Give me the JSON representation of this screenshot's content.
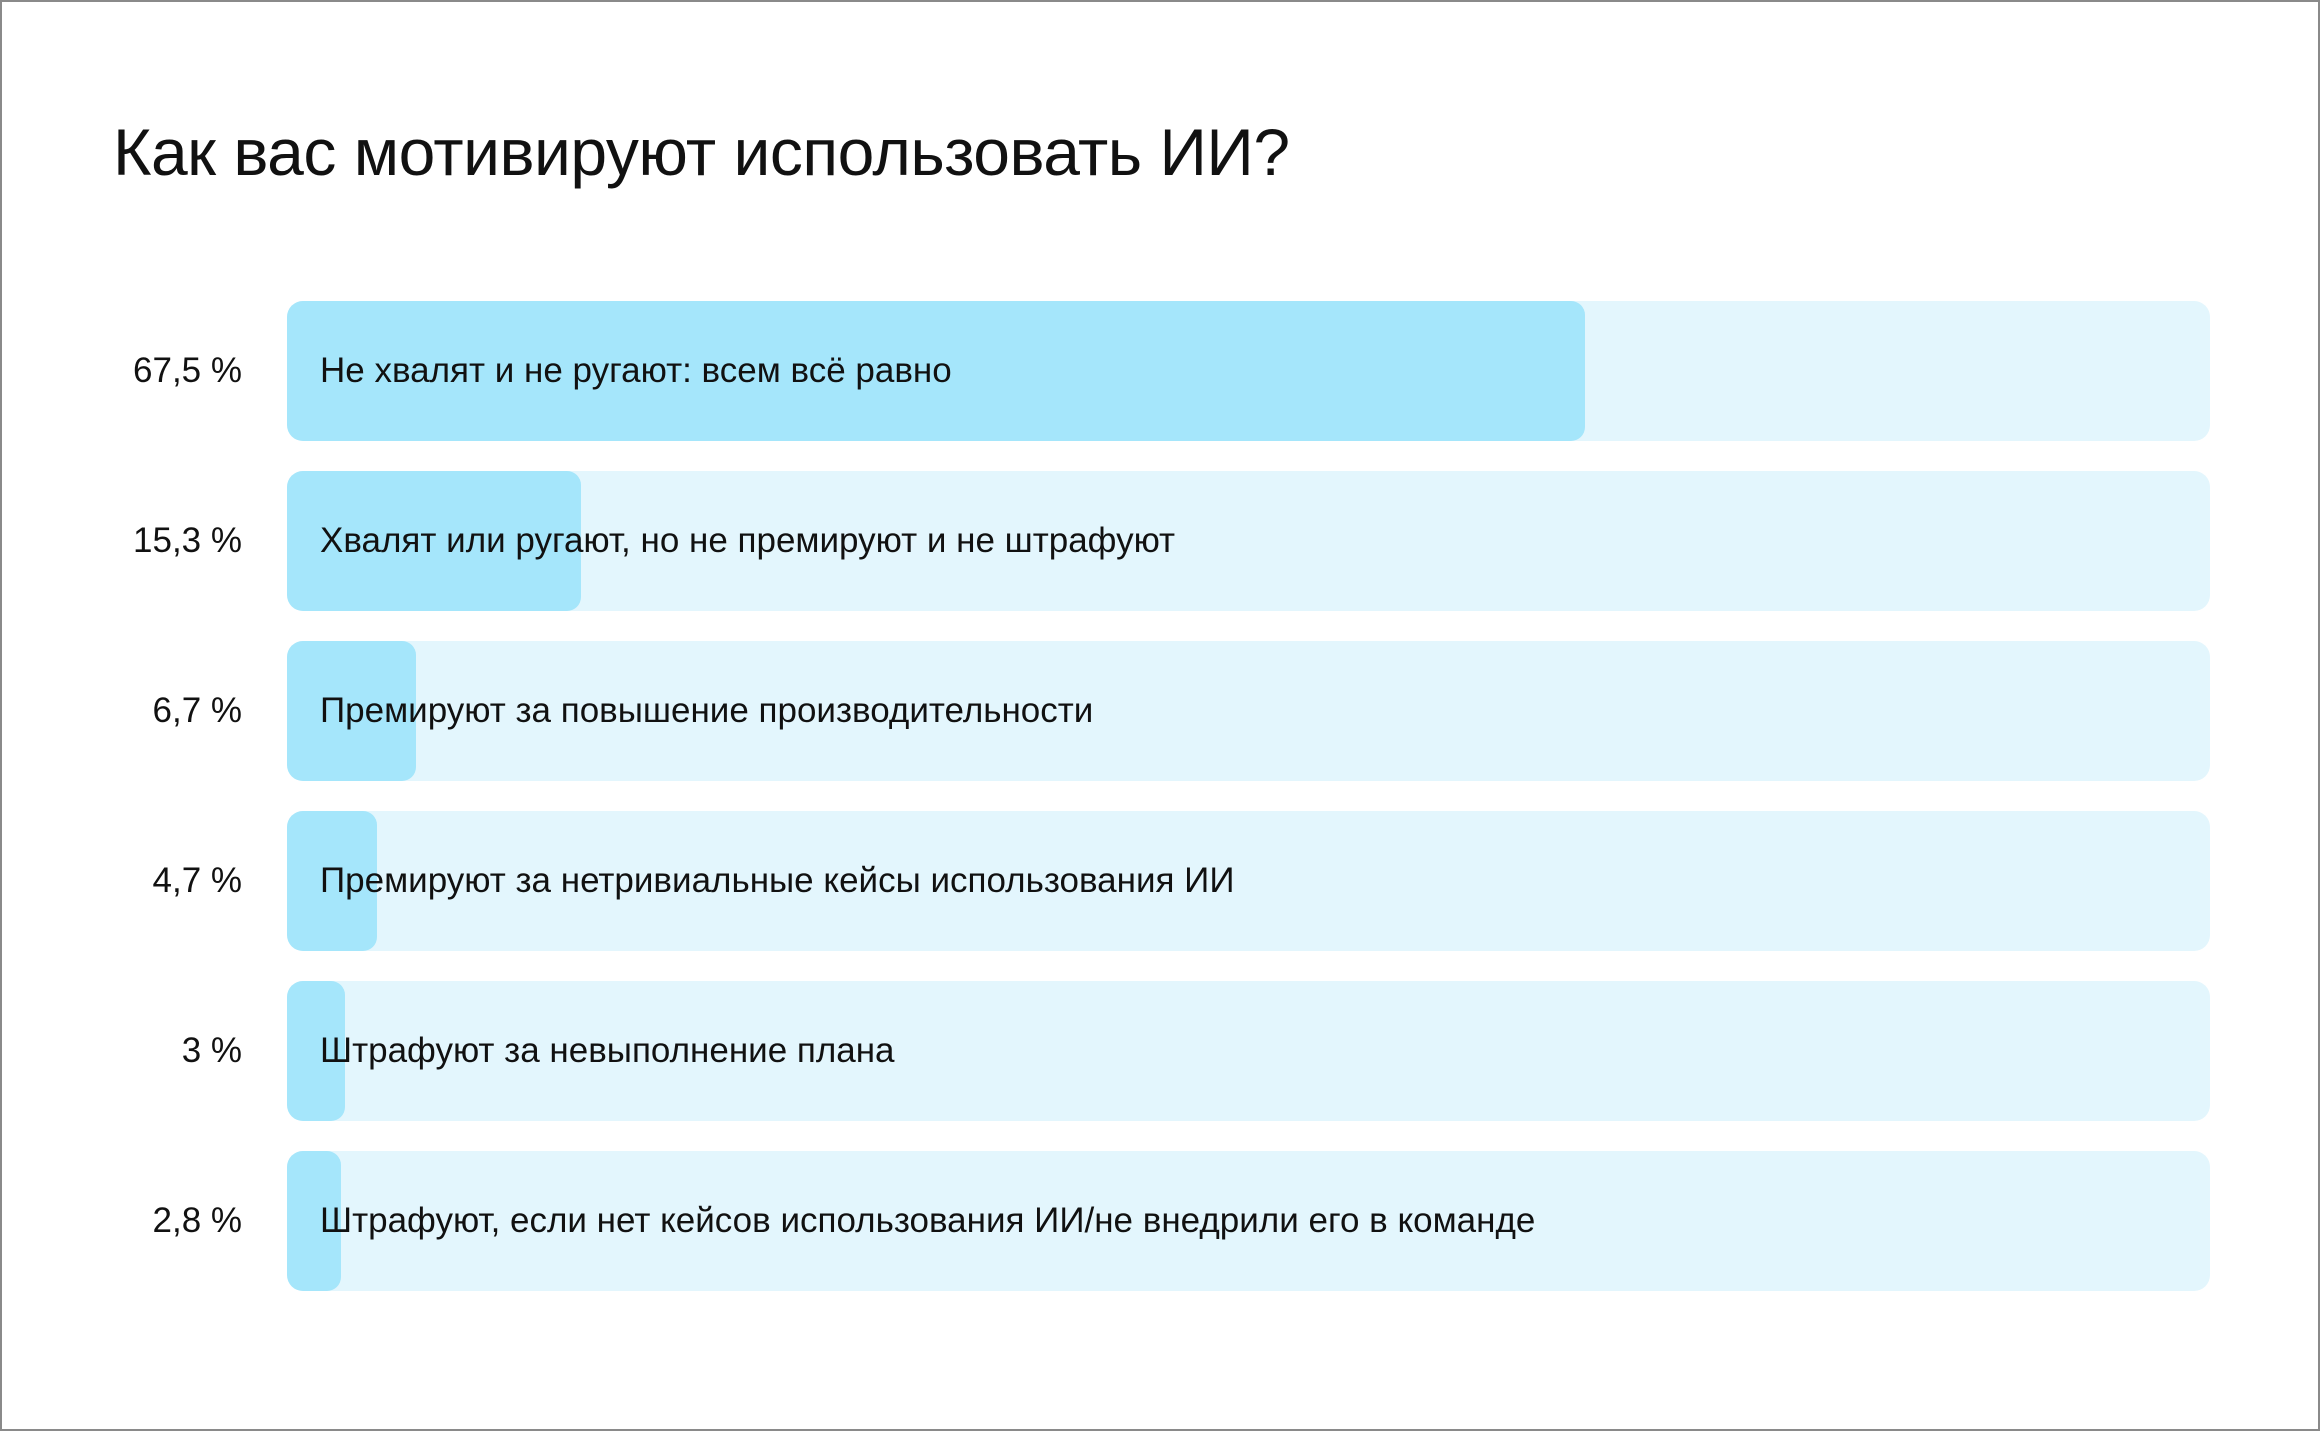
{
  "chart_data": {
    "type": "bar",
    "orientation": "horizontal",
    "title": "Как вас мотивируют использовать ИИ?",
    "categories": [
      "Не хвалят и не ругают: всем всё равно",
      "Хвалят или ругают, но не премируют и не штрафуют",
      "Премируют за повышение производительности",
      "Премируют за нетривиальные кейсы использования ИИ",
      "Штрафуют за невыполнение плана",
      "Штрафуют, если нет кейсов использования ИИ/не внедрили его в команде"
    ],
    "values": [
      67.5,
      15.3,
      6.7,
      4.7,
      3,
      2.8
    ],
    "value_labels": [
      "67,5 %",
      "15,3 %",
      "6,7 %",
      "4,7 %",
      "3 %",
      "2,8 %"
    ],
    "xlim": [
      0,
      100
    ],
    "grid": false,
    "legend": "none",
    "colors": {
      "fill": "#a5e6fb",
      "track": "#e3f6fd",
      "text": "#111111",
      "border": "#8a8a8a"
    }
  }
}
